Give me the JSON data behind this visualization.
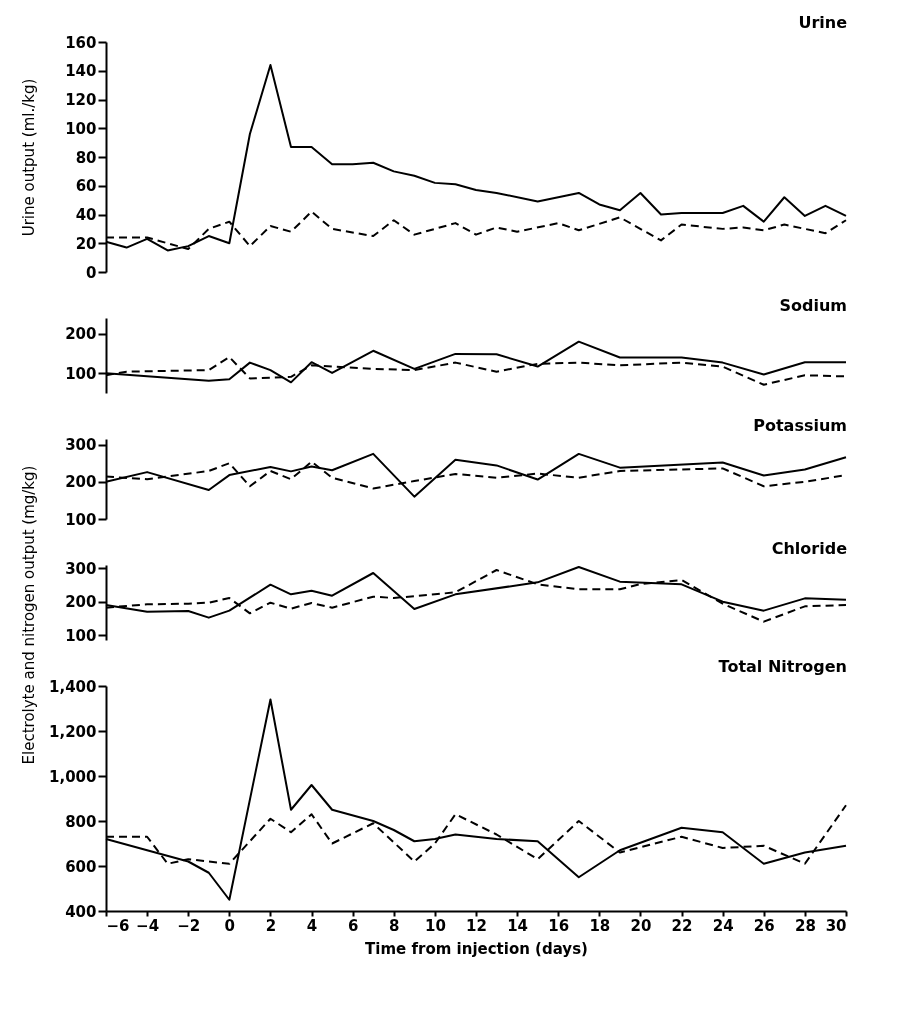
{
  "chart_data": [
    {
      "type": "line",
      "title": "Urine",
      "ylabel": "Urine output (ml./kg)",
      "xlim": [
        -6,
        30
      ],
      "ylim": [
        0,
        160
      ],
      "yticks": [
        0,
        20,
        40,
        60,
        80,
        100,
        120,
        140,
        160
      ],
      "tick_labels": "y",
      "series": [
        {
          "color": "#000000",
          "line_style": "solid",
          "x": [
            -6,
            -5,
            -4,
            -3,
            -2,
            -1,
            0,
            1,
            2,
            3,
            4,
            5,
            6,
            7,
            8,
            9,
            10,
            11,
            12,
            13,
            15,
            17,
            18,
            19,
            20,
            21,
            22,
            24,
            25,
            26,
            27,
            28,
            29,
            30
          ],
          "values": [
            21,
            17,
            23,
            15,
            18,
            25,
            20,
            96,
            144,
            87,
            87,
            75,
            75,
            76,
            70,
            67,
            62,
            61,
            57,
            55,
            49,
            55,
            47,
            43,
            55,
            40,
            41,
            41,
            46,
            35,
            52,
            39,
            46,
            39
          ]
        },
        {
          "color": "#000000",
          "line_style": "dashed",
          "x": [
            -6,
            -4,
            -3,
            -2,
            -1,
            0,
            1,
            2,
            3,
            4,
            5,
            7,
            8,
            9,
            11,
            12,
            13,
            14,
            16,
            17,
            19,
            21,
            22,
            24,
            25,
            26,
            27,
            29,
            30
          ],
          "values": [
            24,
            24,
            20,
            16,
            30,
            35,
            18,
            32,
            28,
            42,
            30,
            25,
            36,
            26,
            34,
            26,
            31,
            28,
            34,
            29,
            38,
            22,
            33,
            30,
            31,
            29,
            33,
            27,
            36
          ]
        }
      ]
    },
    {
      "type": "line",
      "title": "Sodium",
      "xlim": [
        -6,
        30
      ],
      "ylim": [
        50,
        240
      ],
      "yticks": [
        100,
        200
      ],
      "tick_labels": "y",
      "series": [
        {
          "color": "#000000",
          "line_style": "solid",
          "x": [
            -6,
            -1,
            0,
            1,
            2,
            3,
            4,
            5,
            7,
            9,
            11,
            13,
            15,
            17,
            19,
            22,
            24,
            26,
            28,
            30
          ],
          "values": [
            100,
            81,
            85,
            127,
            108,
            77,
            128,
            101,
            157,
            111,
            149,
            148,
            117,
            180,
            140,
            140,
            127,
            97,
            128,
            128
          ]
        },
        {
          "color": "#000000",
          "line_style": "dashed",
          "x": [
            -6,
            -5,
            -1,
            0,
            1,
            3,
            4,
            5,
            7,
            9,
            11,
            13,
            15,
            17,
            19,
            22,
            24,
            26,
            28,
            30
          ],
          "values": [
            95,
            104,
            108,
            141,
            87,
            91,
            120,
            117,
            111,
            108,
            127,
            104,
            124,
            127,
            120,
            127,
            117,
            71,
            95,
            92
          ]
        }
      ]
    },
    {
      "type": "line",
      "title": "Potassium",
      "ylabel": "Electrolyte and nitrogen output (mg/kg)",
      "xlim": [
        -6,
        30
      ],
      "ylim": [
        100,
        315
      ],
      "yticks": [
        100,
        200,
        300
      ],
      "tick_labels": "y",
      "series": [
        {
          "color": "#000000",
          "line_style": "solid",
          "x": [
            -6,
            -4,
            -1,
            0,
            2,
            3,
            4,
            5,
            7,
            9,
            11,
            13,
            15,
            17,
            19,
            24,
            26,
            28,
            30
          ],
          "values": [
            200,
            226,
            178,
            218,
            240,
            228,
            241,
            231,
            275,
            160,
            259,
            244,
            206,
            275,
            238,
            252,
            217,
            233,
            266
          ]
        },
        {
          "color": "#000000",
          "line_style": "dashed",
          "x": [
            -6,
            -4,
            -1,
            0,
            1,
            2,
            3,
            4,
            5,
            7,
            9,
            11,
            13,
            15,
            17,
            19,
            24,
            26,
            28,
            30
          ],
          "values": [
            214,
            207,
            229,
            250,
            188,
            229,
            207,
            254,
            211,
            182,
            202,
            221,
            211,
            222,
            211,
            229,
            236,
            188,
            200,
            218
          ]
        }
      ]
    },
    {
      "type": "line",
      "title": "Chloride",
      "xlim": [
        -6,
        30
      ],
      "ylim": [
        85,
        310
      ],
      "yticks": [
        100,
        200,
        300
      ],
      "tick_labels": "y",
      "series": [
        {
          "color": "#000000",
          "line_style": "solid",
          "x": [
            -6,
            -4,
            -2,
            -1,
            0,
            2,
            3,
            4,
            5,
            7,
            9,
            11,
            15,
            17,
            19,
            22,
            24,
            26,
            28,
            30
          ],
          "values": [
            190,
            170,
            172,
            152,
            173,
            251,
            222,
            233,
            218,
            286,
            178,
            222,
            258,
            304,
            260,
            252,
            200,
            173,
            210,
            206
          ]
        },
        {
          "color": "#000000",
          "line_style": "dashed",
          "x": [
            -6,
            -4,
            -2,
            -1,
            0,
            1,
            2,
            3,
            4,
            5,
            7,
            8,
            10,
            11,
            13,
            15,
            17,
            19,
            20,
            22,
            24,
            26,
            28,
            30
          ],
          "values": [
            182,
            192,
            194,
            197,
            211,
            165,
            197,
            179,
            196,
            182,
            215,
            211,
            222,
            228,
            295,
            252,
            237,
            237,
            253,
            265,
            194,
            140,
            186,
            190
          ]
        }
      ]
    },
    {
      "type": "line",
      "title": "Total Nitrogen",
      "xlabel": "Time from injection (days)",
      "xlim": [
        -6,
        30
      ],
      "xticks": [
        {
          "value": -6,
          "label": "−6"
        },
        {
          "value": -4,
          "label": "−4"
        },
        {
          "value": -2,
          "label": "−2"
        },
        0,
        2,
        4,
        6,
        8,
        10,
        12,
        14,
        16,
        18,
        20,
        22,
        24,
        26,
        28,
        30
      ],
      "ylim": [
        400,
        1400
      ],
      "yticks": [
        400,
        600,
        800,
        {
          "value": 1000,
          "label": "1,000"
        },
        {
          "value": 1200,
          "label": "1,200"
        },
        {
          "value": 1400,
          "label": "1,400"
        }
      ],
      "series": [
        {
          "color": "#000000",
          "line_style": "solid",
          "x": [
            -6,
            -4,
            -2,
            -1,
            0,
            2,
            3,
            4,
            5,
            7,
            8,
            9,
            10,
            11,
            13,
            15,
            17,
            19,
            22,
            24,
            26,
            28,
            30
          ],
          "values": [
            720,
            670,
            620,
            570,
            450,
            1340,
            850,
            960,
            850,
            800,
            760,
            710,
            720,
            740,
            720,
            710,
            550,
            670,
            770,
            750,
            610,
            660,
            690
          ]
        },
        {
          "color": "#000000",
          "line_style": "dashed",
          "x": [
            -6,
            -4,
            -3,
            -2,
            0,
            2,
            3,
            4,
            5,
            7,
            9,
            10,
            11,
            13,
            15,
            17,
            19,
            22,
            24,
            26,
            28,
            30
          ],
          "values": [
            730,
            730,
            610,
            630,
            610,
            810,
            750,
            830,
            700,
            790,
            620,
            700,
            830,
            740,
            630,
            800,
            660,
            730,
            680,
            690,
            610,
            870
          ]
        }
      ]
    }
  ]
}
